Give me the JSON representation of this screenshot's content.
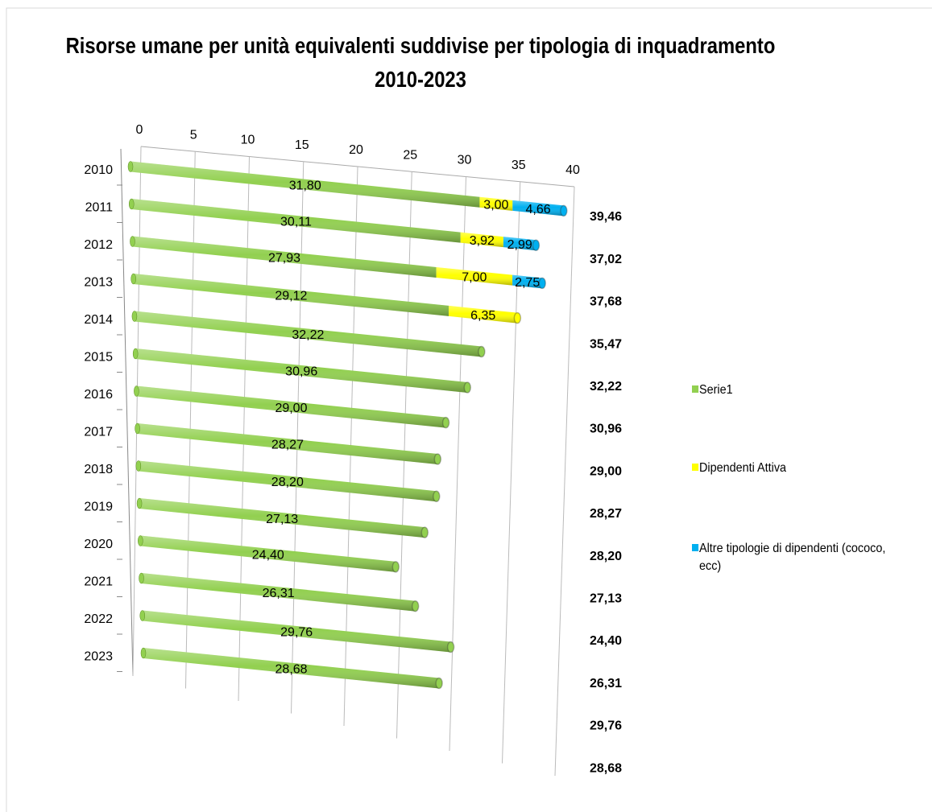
{
  "chart_data": {
    "type": "bar3d",
    "title": "Risorse umane per unità equivalenti suddivise per tipologia di inquadramento 2010-2023",
    "categories": [
      "2010",
      "2011",
      "2012",
      "2013",
      "2014",
      "2015",
      "2016",
      "2017",
      "2018",
      "2019",
      "2020",
      "2021",
      "2022",
      "2023"
    ],
    "stacked": true,
    "orientation": "horizontal",
    "series": [
      {
        "name": "Serie1",
        "color": "#92d050",
        "values": [
          31.8,
          30.11,
          27.93,
          29.12,
          32.22,
          30.96,
          29.0,
          28.27,
          28.2,
          27.13,
          24.4,
          26.31,
          29.76,
          28.68
        ],
        "value_labels": [
          "31,80",
          "30,11",
          "27,93",
          "29,12",
          "32,22",
          "30,96",
          "29,00",
          "28,27",
          "28,20",
          "27,13",
          "24,40",
          "26,31",
          "29,76",
          "28,68"
        ]
      },
      {
        "name": "Dipendenti Attiva",
        "color": "#ffff00",
        "values": [
          3.0,
          3.92,
          7.0,
          6.35,
          null,
          null,
          null,
          null,
          null,
          null,
          null,
          null,
          null,
          null
        ],
        "value_labels": [
          "3,00",
          "3,92",
          "7,00",
          "6,35",
          null,
          null,
          null,
          null,
          null,
          null,
          null,
          null,
          null,
          null
        ]
      },
      {
        "name": "Altre tipologie di dipendenti (cococo, ecc)",
        "color": "#00b0f0",
        "values": [
          4.66,
          2.99,
          2.75,
          null,
          null,
          null,
          null,
          null,
          null,
          null,
          null,
          null,
          null,
          null
        ],
        "value_labels": [
          "4,66",
          "2,99",
          "2,75",
          null,
          null,
          null,
          null,
          null,
          null,
          null,
          null,
          null,
          null,
          null
        ]
      }
    ],
    "totals": [
      39.46,
      37.02,
      37.68,
      35.47,
      32.22,
      30.96,
      29.0,
      28.27,
      28.2,
      27.13,
      24.4,
      26.31,
      29.76,
      28.68
    ],
    "total_labels": [
      "39,46",
      "37,02",
      "37,68",
      "35,47",
      "32,22",
      "30,96",
      "29,00",
      "28,27",
      "28,20",
      "27,13",
      "24,40",
      "26,31",
      "29,76",
      "28,68"
    ],
    "xlim": [
      0,
      40
    ],
    "xticks": [
      0,
      5,
      10,
      15,
      20,
      25,
      30,
      35,
      40
    ],
    "grid": true,
    "legend": "right"
  }
}
